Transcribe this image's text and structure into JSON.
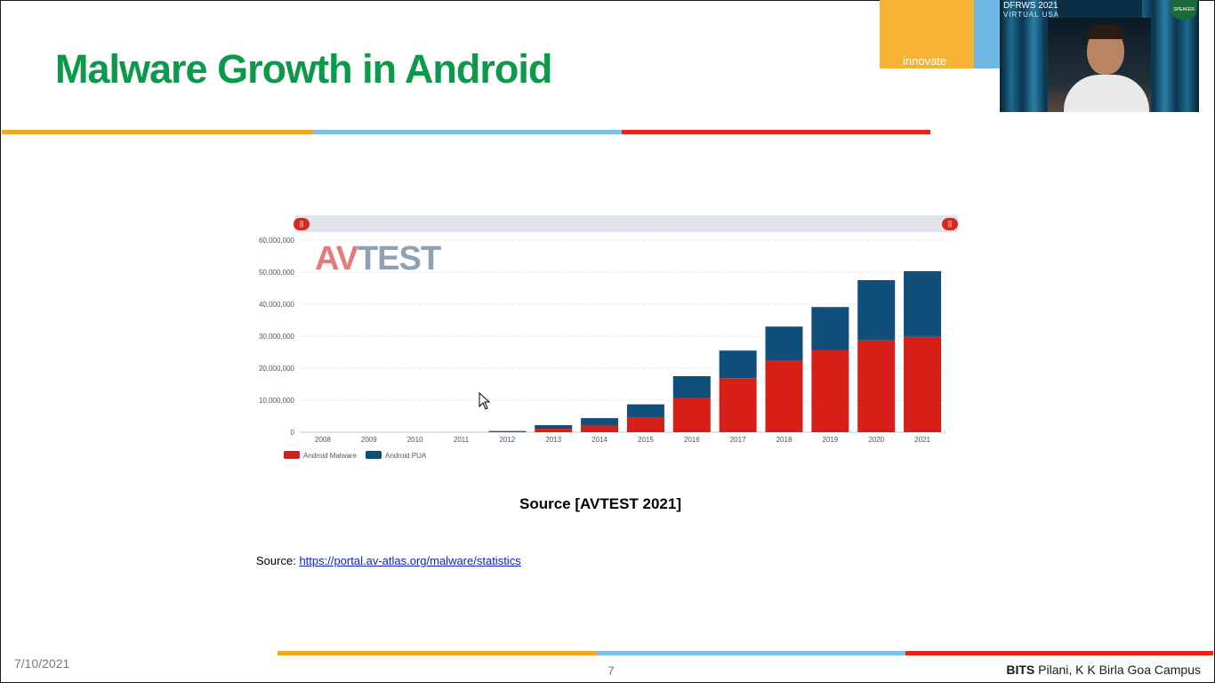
{
  "slide": {
    "title": "Malware Growth in Android",
    "caption": "Source [AVTEST 2021]",
    "source_prefix": "Source:",
    "source_link": "https://portal.av-atlas.org/malware/statistics",
    "date": "7/10/2021",
    "page_number": "7",
    "footer_bold": "BITS",
    "footer_rest": " Pilani, K K Birla Goa Campus",
    "brand_text": "innovate"
  },
  "webcam": {
    "event_label": "DFRWS 2021",
    "event_sub": "VIRTUAL USA",
    "badge": "SPEAKER"
  },
  "watermark": {
    "part1": "AV",
    "part2": "TEST"
  },
  "slider": {
    "left_knob": "||",
    "right_knob": "||"
  },
  "colors": {
    "title": "#0a9a4a",
    "malware": "#d71f1a",
    "pua": "#0f4f7a",
    "stripe_orange": "#f5a623",
    "stripe_blue": "#7cc0e8",
    "stripe_red": "#e8241a"
  },
  "chart_data": {
    "type": "bar",
    "stacked": true,
    "categories": [
      "2008",
      "2009",
      "2010",
      "2011",
      "2012",
      "2013",
      "2014",
      "2015",
      "2016",
      "2017",
      "2018",
      "2019",
      "2020",
      "2021"
    ],
    "series": [
      {
        "name": "Android Malware",
        "color": "#d71f1a",
        "values": [
          0,
          0,
          0,
          20000,
          300000,
          1100000,
          2100000,
          4700000,
          10700000,
          16900000,
          22500000,
          25700000,
          28700000,
          29800000
        ]
      },
      {
        "name": "Android PUA",
        "color": "#0f4f7a",
        "values": [
          0,
          0,
          0,
          0,
          100000,
          1100000,
          2300000,
          4000000,
          6800000,
          8600000,
          10500000,
          13400000,
          18800000,
          20500000
        ]
      }
    ],
    "yticks": [
      "0",
      "10,000,000",
      "20,000,000",
      "30,000,000",
      "40,000,000",
      "50,000,000",
      "60,000,000"
    ],
    "ylim": [
      0,
      60000000
    ],
    "grid": true,
    "legend_position": "bottom-left"
  }
}
